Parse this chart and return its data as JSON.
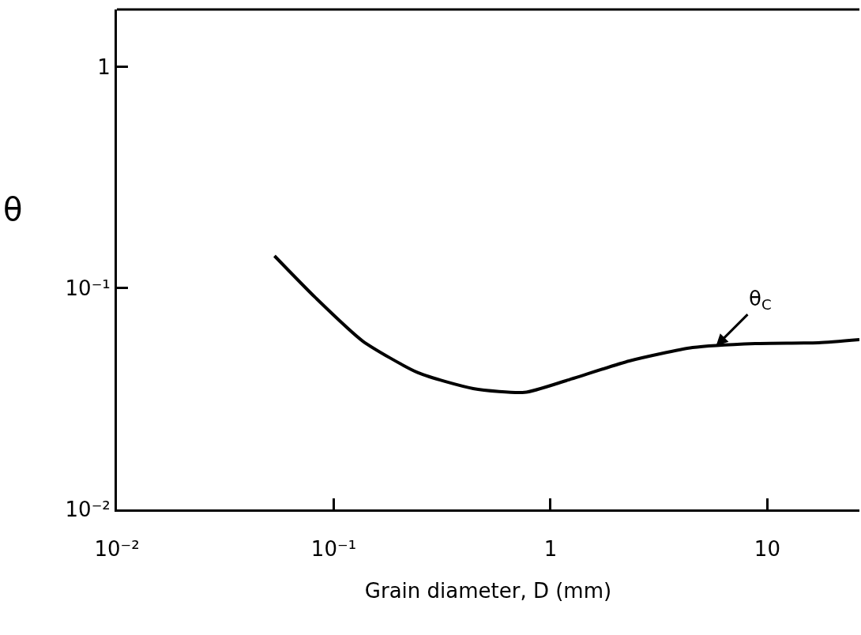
{
  "chart_data": {
    "type": "line",
    "xlabel": "Grain diameter, D (mm)",
    "ylabel": "θ",
    "log": "xy",
    "grid": false,
    "legend": false,
    "marker": "none",
    "line_style": "solid",
    "x": [
      0.0533,
      0.0824,
      0.136,
      0.245,
      0.44,
      0.759,
      1.18,
      2.31,
      4.52,
      8.8,
      17.2,
      26.6
    ],
    "series": [
      {
        "color": "#000000",
        "values": [
          0.14,
          0.0906,
          0.0577,
          0.0415,
          0.0352,
          0.0338,
          0.0382,
          0.0469,
          0.0539,
          0.0562,
          0.0567,
          0.0586
        ]
      }
    ],
    "xlim": [
      0.01,
      26.6
    ],
    "ylim": [
      0.01,
      1.82
    ],
    "xticks": [
      {
        "value": 0.01,
        "label": "10⁻²"
      },
      {
        "value": 0.1,
        "label": "10⁻¹"
      },
      1,
      10
    ],
    "yticks": [
      {
        "value": 0.01,
        "label": "10⁻²"
      },
      {
        "value": 0.1,
        "label": "10⁻¹"
      },
      1
    ],
    "annotations": [
      {
        "text": "θ$_{C}$",
        "x": 5.8,
        "y": 0.0548
      }
    ]
  }
}
